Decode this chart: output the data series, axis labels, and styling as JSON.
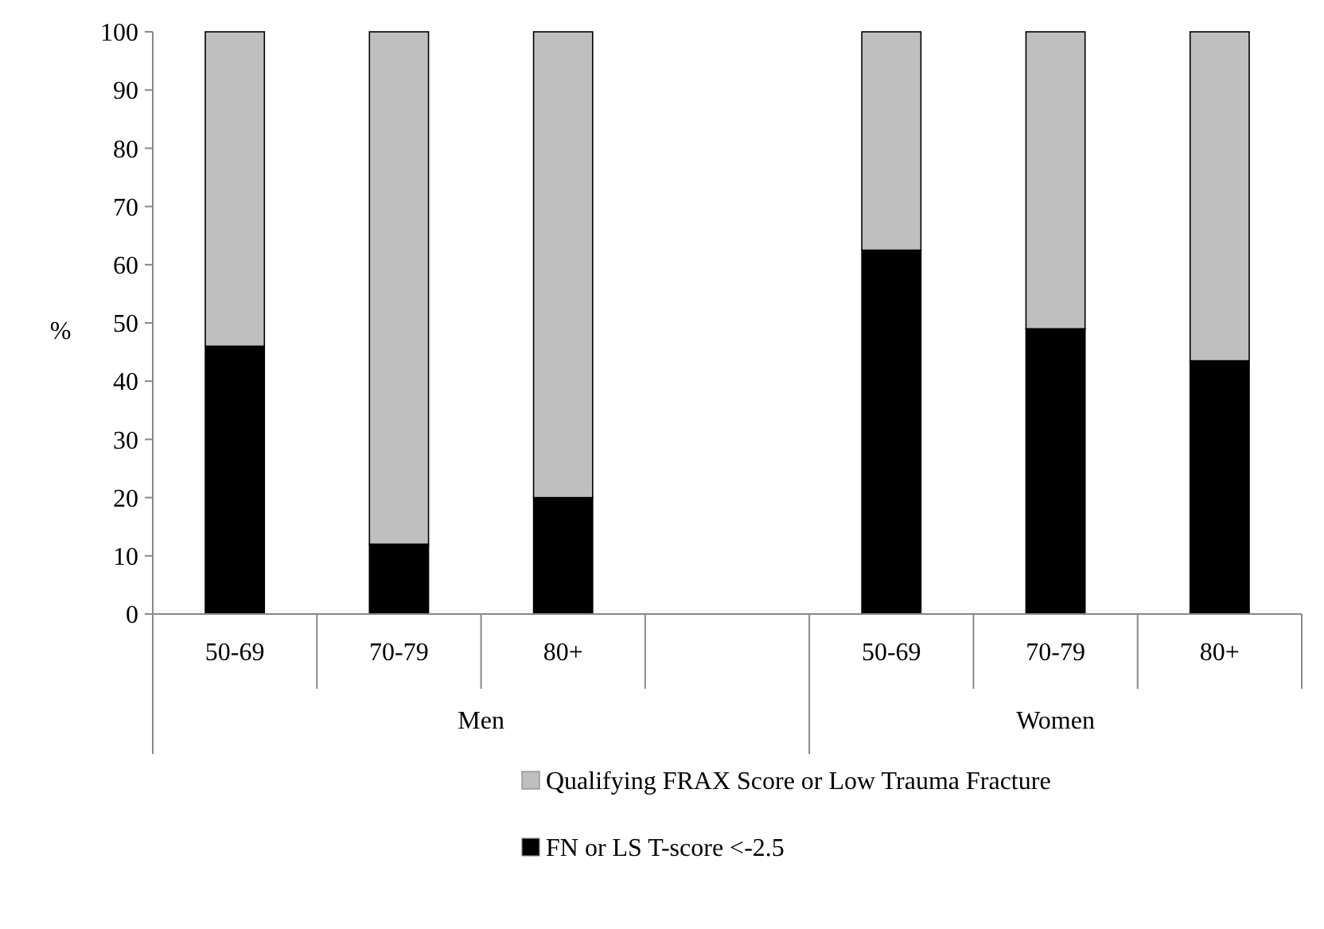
{
  "chart_data": {
    "type": "bar",
    "stacked": true,
    "ylabel": "%",
    "categories": [
      "50-69",
      "70-79",
      "80+",
      null,
      "50-69",
      "70-79",
      "80+"
    ],
    "series": [
      {
        "name": "FN or LS T-score <-2.5",
        "color": "#000000",
        "values": [
          46,
          12,
          20,
          null,
          62.5,
          49,
          43.5
        ]
      },
      {
        "name": "Qualifying FRAX Score or Low Trauma Fracture",
        "color": "#bfbfbf",
        "values": [
          54,
          88,
          80,
          null,
          37.5,
          51,
          56.5
        ]
      }
    ],
    "annotations": [
      "Men",
      "Women"
    ],
    "ylim": [
      0,
      100
    ],
    "yticks": [
      0,
      10,
      20,
      30,
      40,
      50,
      60,
      70,
      80,
      90,
      100
    ],
    "legend": "bottom"
  }
}
